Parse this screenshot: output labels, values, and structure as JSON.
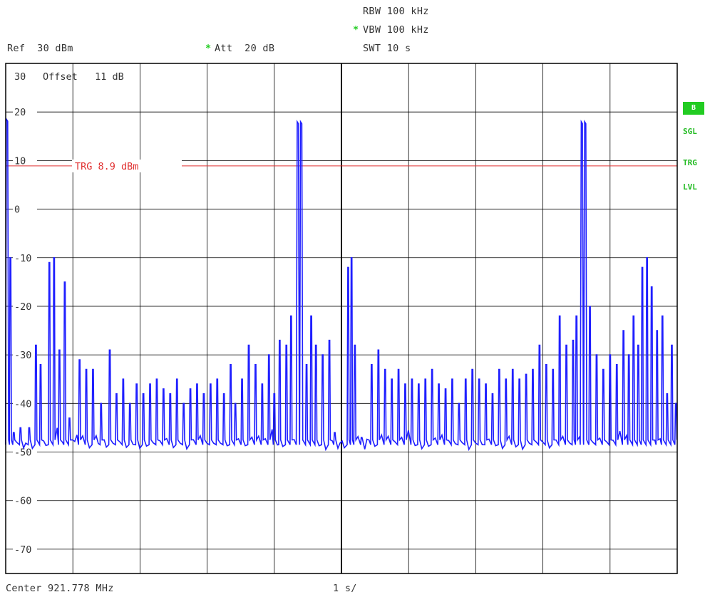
{
  "header": {
    "rbw": "RBW 100 kHz",
    "vbw": "VBW 100 kHz",
    "vbw_marker": "*",
    "swt": "SWT 10 s",
    "ref": "Ref  30 dBm",
    "att_marker": "*",
    "att": "Att  20 dB"
  },
  "footer": {
    "center": "Center 921.778 MHz",
    "span": "1 s/"
  },
  "side_panel": {
    "badge": "B",
    "sgl": "SGL",
    "trg": "TRG",
    "lvl": "LVL"
  },
  "colors": {
    "trace": "#1f1fff",
    "grid": "#000000",
    "trigger": "#e03030",
    "status": "#22cc22",
    "text": "#333333"
  },
  "chart_data": {
    "type": "line",
    "offset_label": "Offset   11 dB",
    "xlabel": "",
    "ylabel": "",
    "x_unit": "s",
    "xlim": [
      0,
      10
    ],
    "ylim": [
      -75,
      30
    ],
    "yticks": [
      30,
      20,
      10,
      0,
      -10,
      -20,
      -30,
      -40,
      -50,
      -60,
      -70
    ],
    "ytick_labels": [
      "30",
      "20",
      "10",
      "0",
      "-10",
      "-20",
      "-30",
      "-40",
      "-50",
      "-60",
      "-70"
    ],
    "grid": true,
    "trigger_level": 8.9,
    "trigger_label": "TRG 8.9 dBm",
    "noise_floor": -48,
    "series": [
      {
        "peaks": [
          [
            0.02,
            18.5
          ],
          [
            0.07,
            -10
          ],
          [
            0.12,
            -46
          ],
          [
            0.22,
            -45
          ],
          [
            0.35,
            -45
          ],
          [
            0.45,
            -28
          ],
          [
            0.52,
            -32
          ],
          [
            0.65,
            -11
          ],
          [
            0.72,
            -10
          ],
          [
            0.8,
            -29
          ],
          [
            0.88,
            -15
          ],
          [
            0.95,
            -43
          ],
          [
            1.1,
            -31
          ],
          [
            1.2,
            -33
          ],
          [
            1.3,
            -33
          ],
          [
            1.42,
            -40
          ],
          [
            1.55,
            -29
          ],
          [
            1.65,
            -38
          ],
          [
            1.75,
            -35
          ],
          [
            1.85,
            -40
          ],
          [
            1.95,
            -36
          ],
          [
            2.05,
            -38
          ],
          [
            2.15,
            -36
          ],
          [
            2.25,
            -35
          ],
          [
            2.35,
            -37
          ],
          [
            2.45,
            -38
          ],
          [
            2.55,
            -35
          ],
          [
            2.65,
            -40
          ],
          [
            2.75,
            -37
          ],
          [
            2.85,
            -36
          ],
          [
            2.95,
            -38
          ],
          [
            3.05,
            -36
          ],
          [
            3.15,
            -35
          ],
          [
            3.25,
            -38
          ],
          [
            3.35,
            -32
          ],
          [
            3.42,
            -40
          ],
          [
            3.52,
            -35
          ],
          [
            3.62,
            -28
          ],
          [
            3.72,
            -32
          ],
          [
            3.82,
            -36
          ],
          [
            3.92,
            -30
          ],
          [
            4.0,
            -38
          ],
          [
            4.08,
            -27
          ],
          [
            4.18,
            -28
          ],
          [
            4.25,
            -22
          ],
          [
            4.35,
            18
          ],
          [
            4.4,
            18
          ],
          [
            4.48,
            -32
          ],
          [
            4.55,
            -22
          ],
          [
            4.62,
            -28
          ],
          [
            4.72,
            -30
          ],
          [
            4.82,
            -27
          ],
          [
            4.9,
            -46
          ],
          [
            5.1,
            -12
          ],
          [
            5.15,
            -10
          ],
          [
            5.2,
            -28
          ],
          [
            5.3,
            -47
          ],
          [
            5.45,
            -32
          ],
          [
            5.55,
            -29
          ],
          [
            5.65,
            -33
          ],
          [
            5.75,
            -35
          ],
          [
            5.85,
            -33
          ],
          [
            5.95,
            -36
          ],
          [
            6.05,
            -35
          ],
          [
            6.15,
            -36
          ],
          [
            6.25,
            -35
          ],
          [
            6.35,
            -33
          ],
          [
            6.45,
            -36
          ],
          [
            6.55,
            -37
          ],
          [
            6.65,
            -35
          ],
          [
            6.75,
            -40
          ],
          [
            6.85,
            -35
          ],
          [
            6.95,
            -33
          ],
          [
            7.05,
            -35
          ],
          [
            7.15,
            -36
          ],
          [
            7.25,
            -38
          ],
          [
            7.35,
            -33
          ],
          [
            7.45,
            -35
          ],
          [
            7.55,
            -33
          ],
          [
            7.65,
            -35
          ],
          [
            7.75,
            -34
          ],
          [
            7.85,
            -33
          ],
          [
            7.95,
            -28
          ],
          [
            8.05,
            -32
          ],
          [
            8.15,
            -33
          ],
          [
            8.25,
            -22
          ],
          [
            8.35,
            -28
          ],
          [
            8.45,
            -27
          ],
          [
            8.5,
            -22
          ],
          [
            8.58,
            18
          ],
          [
            8.63,
            18
          ],
          [
            8.7,
            -20
          ],
          [
            8.8,
            -30
          ],
          [
            8.9,
            -33
          ],
          [
            9.0,
            -30
          ],
          [
            9.1,
            -32
          ],
          [
            9.2,
            -25
          ],
          [
            9.28,
            -30
          ],
          [
            9.35,
            -22
          ],
          [
            9.42,
            -28
          ],
          [
            9.48,
            -12
          ],
          [
            9.55,
            -10
          ],
          [
            9.62,
            -16
          ],
          [
            9.7,
            -25
          ],
          [
            9.78,
            -22
          ],
          [
            9.85,
            -38
          ],
          [
            9.92,
            -28
          ],
          [
            9.98,
            -40
          ]
        ]
      }
    ]
  }
}
